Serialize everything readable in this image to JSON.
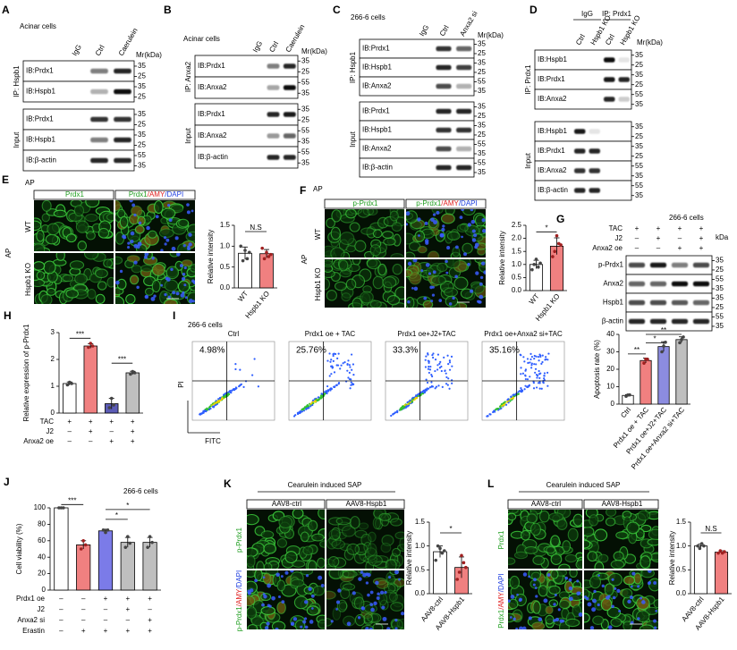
{
  "panels": {
    "A": {
      "letter": "A",
      "cell": "Acinar cells",
      "lanes": [
        "IgG",
        "Ctrl",
        "Caerulein"
      ],
      "unit": "Mr(kDa)",
      "groups": [
        {
          "name": "IP: Hspb1",
          "rows": [
            {
              "label": "IB:Prdx1",
              "markers": [
                "35",
                "25"
              ]
            },
            {
              "label": "IB:Hspb1",
              "markers": [
                "35",
                "25"
              ]
            }
          ]
        },
        {
          "name": "Input",
          "rows": [
            {
              "label": "IB:Prdx1",
              "markers": [
                "35",
                "25"
              ]
            },
            {
              "label": "IB:Hspb1",
              "markers": [
                "35",
                "25"
              ]
            },
            {
              "label": "IB:β-actin",
              "markers": [
                "55",
                "35"
              ]
            }
          ]
        }
      ]
    },
    "B": {
      "letter": "B",
      "cell": "Acinar cells",
      "lanes": [
        "IgG",
        "Ctrl",
        "Caerulein"
      ],
      "unit": "Mr(kDa)",
      "groups": [
        {
          "name": "IP: Anxa2",
          "rows": [
            {
              "label": "IB:Prdx1",
              "markers": [
                "35",
                "25"
              ]
            },
            {
              "label": "IB:Anxa2",
              "markers": [
                "55",
                "35"
              ]
            }
          ]
        },
        {
          "name": "Input",
          "rows": [
            {
              "label": "IB:Prdx1",
              "markers": [
                "35",
                "25"
              ]
            },
            {
              "label": "IB:Anxa2",
              "markers": [
                "55",
                "35"
              ]
            },
            {
              "label": "IB:β-actin",
              "markers": [
                "55",
                "35"
              ]
            }
          ]
        }
      ]
    },
    "C": {
      "letter": "C",
      "cell": "266-6 cells",
      "lanes": [
        "IgG",
        "Ctrl",
        "Anxa2 si"
      ],
      "unit": "Mr(kDa)",
      "groups": [
        {
          "name": "IP: Hspb1",
          "rows": [
            {
              "label": "IB:Prdx1",
              "markers": [
                "35",
                "25"
              ]
            },
            {
              "label": "IB:Hspb1",
              "markers": [
                "35",
                "25"
              ]
            },
            {
              "label": "IB:Anxa2",
              "markers": [
                "55",
                "35"
              ]
            }
          ]
        },
        {
          "name": "Input",
          "rows": [
            {
              "label": "IB:Prdx1",
              "markers": [
                "35",
                "25"
              ]
            },
            {
              "label": "IB:Hspb1",
              "markers": [
                "35",
                "25"
              ]
            },
            {
              "label": "IB:Anxa2",
              "markers": [
                "55",
                "35"
              ]
            },
            {
              "label": "IB:β-actin",
              "markers": [
                "55",
                "35"
              ]
            }
          ]
        }
      ]
    },
    "D": {
      "letter": "D",
      "header_groups": [
        "IgG",
        "IP: Prdx1"
      ],
      "lanes": [
        "Ctrl",
        "Hspb1 KO",
        "Ctrl",
        "Hspb1 KO"
      ],
      "unit": "Mr(kDa)",
      "groups": [
        {
          "name": "IP: Prdx1",
          "rows": [
            {
              "label": "IB:Hspb1",
              "markers": [
                "35",
                "25"
              ]
            },
            {
              "label": "IB:Prdx1",
              "markers": [
                "35",
                "25"
              ]
            },
            {
              "label": "IB:Anxa2",
              "markers": [
                "55",
                "35"
              ]
            }
          ]
        },
        {
          "name": "Input",
          "rows": [
            {
              "label": "IB:Hspb1",
              "markers": [
                "35",
                "25"
              ]
            },
            {
              "label": "IB:Prdx1",
              "markers": [
                "35",
                "25"
              ]
            },
            {
              "label": "IB:Anxa2",
              "markers": [
                "55",
                "35"
              ]
            },
            {
              "label": "IB:β-actin",
              "markers": [
                "55",
                "35"
              ]
            }
          ]
        }
      ]
    },
    "G": {
      "letter": "G",
      "cell": "266-6 cells",
      "unit": "kDa",
      "conditions": [
        {
          "name": "TAC",
          "signs": [
            "+",
            "+",
            "+",
            "+"
          ]
        },
        {
          "name": "J2",
          "signs": [
            "–",
            "+",
            "–",
            "+"
          ]
        },
        {
          "name": "Anxa2 oe",
          "signs": [
            "–",
            "–",
            "+",
            "+"
          ]
        }
      ],
      "rows": [
        {
          "label": "p-Prdx1",
          "markers": [
            "35",
            "25"
          ]
        },
        {
          "label": "Anxa2",
          "markers": [
            "55",
            "35"
          ]
        },
        {
          "label": "Hspb1",
          "markers": [
            "35",
            "25"
          ]
        },
        {
          "label": "β-actin",
          "markers": [
            "55",
            "35"
          ]
        }
      ]
    },
    "E": {
      "letter": "E",
      "region": "AP",
      "side": "AP",
      "columns": [
        [
          "Prdx1"
        ],
        [
          "Prdx1",
          "/AMY",
          "/DAPI"
        ]
      ],
      "rows": [
        "WT",
        "Hspb1 KO"
      ]
    },
    "F": {
      "letter": "F",
      "region": "AP",
      "side": "AP",
      "columns": [
        [
          "p-Prdx1"
        ],
        [
          "p-Prdx1",
          "/AMY",
          "/DAPI"
        ]
      ],
      "rows": [
        "WT",
        "Hspb1 KO"
      ]
    },
    "K": {
      "letter": "K",
      "region": "Cearulein induced SAP",
      "columns": [
        "AAV8-ctrl",
        "AAV8-Hspb1"
      ],
      "rows": [
        [
          "p-Prdx1"
        ],
        [
          "p-Prdx1",
          "/AMY",
          "/DAPI"
        ]
      ]
    },
    "L": {
      "letter": "L",
      "region": "Cearulein induced SAP",
      "columns": [
        "AAV8-ctrl",
        "AAV8-Hspb1"
      ],
      "rows": [
        [
          "Prdx1"
        ],
        [
          "Prdx1",
          "/AMY",
          "/DAPI"
        ]
      ]
    },
    "I": {
      "letter": "I",
      "cell": "266-6 cells",
      "y_label": "PI",
      "x_label": "FITC",
      "plots": [
        {
          "title": "Ctrl",
          "percent": "4.98%"
        },
        {
          "title": "Prdx1 oe + TAC",
          "percent": "25.76%"
        },
        {
          "title": "Prdx1 oe+J2+TAC",
          "percent": "33.3%"
        },
        {
          "title": "Prdx1 oe+Anxa2 si+TAC",
          "percent": "35.16%"
        }
      ]
    }
  },
  "chart_data": [
    {
      "type": "bar",
      "categories": [
        "WT",
        "Hspb1 KO"
      ],
      "values": [
        0.83,
        0.82
      ],
      "errors": [
        0.15,
        0.1
      ],
      "points": [
        [
          1.0,
          0.65,
          0.9,
          0.7,
          0.85
        ],
        [
          0.95,
          0.7,
          0.85,
          0.75,
          0.8
        ]
      ],
      "colors": [
        "#ffffff",
        "#f08080"
      ],
      "ylabel": "Relative intensity",
      "ylim": [
        0,
        1.5
      ],
      "yticks": [
        {
          "value": 0,
          "label": "0.0"
        },
        0.5,
        {
          "value": 1,
          "label": "1.0"
        },
        1.5
      ],
      "annotations": [
        "N.S"
      ]
    },
    {
      "type": "bar",
      "categories": [
        "WT",
        "Hspb1 KO"
      ],
      "values": [
        1.0,
        1.7
      ],
      "errors": [
        0.16,
        0.32
      ],
      "points": [
        [
          0.8,
          1.0,
          1.2,
          0.9,
          1.05
        ],
        [
          1.3,
          1.5,
          2.1,
          1.8,
          1.75
        ]
      ],
      "colors": [
        "#ffffff",
        "#f08080"
      ],
      "ylabel": "Relative intensity",
      "ylim": [
        0,
        2.5
      ],
      "yticks": [
        {
          "value": 0,
          "label": "0.0"
        },
        0.5,
        {
          "value": 1,
          "label": "1.0"
        },
        1.5,
        {
          "value": 2,
          "label": "2.0"
        },
        2.5
      ],
      "annotations": [
        "*"
      ]
    },
    {
      "type": "bar",
      "letter": "H",
      "categories": [
        null,
        null,
        null,
        null
      ],
      "values": [
        1.1,
        2.5,
        0.35,
        1.5
      ],
      "errors": [
        0.06,
        0.08,
        0.2,
        0.06
      ],
      "points": [
        [
          1.05,
          1.15,
          1.1
        ],
        [
          2.45,
          2.6,
          2.5
        ],
        [
          0.2,
          0.55,
          0.3
        ],
        [
          1.45,
          1.55,
          1.5
        ]
      ],
      "colors": [
        "#ffffff",
        "#f08080",
        "#5b5bb5",
        "#bfbfbf"
      ],
      "ylabel": "Relative expression of p-Prdx1",
      "ylim": [
        0,
        3
      ],
      "yticks": [
        0,
        1,
        2,
        3
      ],
      "conditions": [
        {
          "name": "TAC",
          "signs": [
            "+",
            "+",
            "+",
            "+"
          ]
        },
        {
          "name": "J2",
          "signs": [
            "–",
            "+",
            "–",
            "+"
          ]
        },
        {
          "name": "Anxa2 oe",
          "signs": [
            "–",
            "–",
            "+",
            "+"
          ]
        }
      ],
      "annotations": [
        "***",
        "***"
      ]
    },
    {
      "type": "bar",
      "categories": [
        "Ctrl",
        "Prdx1 oe + TAC",
        "Prdx1 oe+J2+TAC",
        "Prdx1 oe+Anxa2 si+TAC"
      ],
      "values": [
        5,
        25,
        33,
        37
      ],
      "errors": [
        0.5,
        1.4,
        2.8,
        1.6
      ],
      "points": [
        [
          4.5,
          5.2,
          5.3
        ],
        [
          23.5,
          25.8,
          25.7
        ],
        [
          30,
          33.3,
          35.5
        ],
        [
          35.2,
          37,
          38.5
        ]
      ],
      "colors": [
        "#ffffff",
        "#f08080",
        "#8c8ce0",
        "#bfbfbf"
      ],
      "ylabel": "Apoptosis rate (%)",
      "ylim": [
        0,
        40
      ],
      "yticks": [
        0,
        10,
        20,
        30,
        40
      ],
      "annotations": [
        "**",
        "*",
        "**"
      ]
    },
    {
      "type": "bar",
      "letter": "J",
      "subtitle": "266-6 cells",
      "categories": [
        null,
        null,
        null,
        null,
        null
      ],
      "values": [
        100,
        55,
        72,
        58,
        58
      ],
      "errors": [
        0.5,
        5,
        2,
        6,
        6
      ],
      "points": [
        [
          100,
          100,
          100
        ],
        [
          50,
          60,
          55
        ],
        [
          73,
          70,
          73
        ],
        [
          52,
          65,
          57
        ],
        [
          52,
          65,
          58
        ]
      ],
      "colors": [
        "#ffffff",
        "#f08080",
        "#7b7be8",
        "#bfbfbf",
        "#bfbfbf"
      ],
      "ylabel": "Cell viability (%)",
      "ylim": [
        0,
        100
      ],
      "yticks": [
        0,
        20,
        40,
        60,
        80,
        100
      ],
      "conditions": [
        {
          "name": "Prdx1 oe",
          "signs": [
            "–",
            "–",
            "+",
            "+",
            "+"
          ]
        },
        {
          "name": "J2",
          "signs": [
            "–",
            "–",
            "–",
            "+",
            "–"
          ]
        },
        {
          "name": "Anxa2 si",
          "signs": [
            "–",
            "–",
            "–",
            "–",
            "+"
          ]
        },
        {
          "name": "Erastin",
          "signs": [
            "–",
            "+",
            "+",
            "+",
            "+"
          ]
        }
      ],
      "annotations": [
        "***",
        "*",
        "*"
      ]
    },
    {
      "type": "bar",
      "categories": [
        "AAV8-ctrl",
        "AAV8-Hspb1"
      ],
      "values": [
        0.88,
        0.55
      ],
      "errors": [
        0.12,
        0.22
      ],
      "points": [
        [
          0.7,
          1.0,
          0.95,
          0.85,
          0.9
        ],
        [
          0.3,
          0.45,
          0.8,
          0.65,
          0.55
        ]
      ],
      "colors": [
        "#ffffff",
        "#f08080"
      ],
      "ylabel": "Relative intensity",
      "ylim": [
        0,
        1.5
      ],
      "yticks": [
        {
          "value": 0,
          "label": "0.0"
        },
        0.5,
        {
          "value": 1,
          "label": "1.0"
        },
        1.5
      ],
      "annotations": [
        "*"
      ]
    },
    {
      "type": "bar",
      "categories": [
        "AAV8-ctrl",
        "AAV8-Hspb1"
      ],
      "values": [
        1.0,
        0.87
      ],
      "errors": [
        0.04,
        0.03
      ],
      "points": [
        [
          1.0,
          0.95,
          1.05,
          1.0
        ],
        [
          0.85,
          0.9,
          0.85,
          0.88
        ]
      ],
      "colors": [
        "#ffffff",
        "#f08080"
      ],
      "ylabel": "Relative intensity",
      "ylim": [
        0,
        1.5
      ],
      "yticks": [
        {
          "value": 0,
          "label": "0.0"
        },
        0.5,
        {
          "value": 1,
          "label": "1.0"
        },
        1.5
      ],
      "annotations": [
        "N.S"
      ]
    }
  ]
}
